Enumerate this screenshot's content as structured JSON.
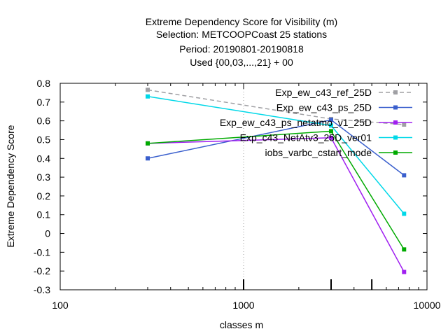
{
  "chart_data": {
    "type": "line",
    "title_lines": [
      "Extreme Dependency Score  for Visibility (m)",
      "Selection: METCOOPCoast     25 stations",
      "Period: 20190801-20190818",
      "Used {00,03,...,21} + 00"
    ],
    "xlabel": "classes m",
    "ylabel": "Extreme Dependency Score",
    "x_scale": "log",
    "xlim": [
      100,
      10000
    ],
    "ylim": [
      -0.3,
      0.8
    ],
    "x_ticks": [
      100,
      1000,
      10000
    ],
    "x_tick_labels": [
      "100",
      "1000",
      "10000"
    ],
    "y_ticks": [
      -0.3,
      -0.2,
      -0.1,
      0,
      0.1,
      0.2,
      0.3,
      0.4,
      0.5,
      0.6,
      0.7,
      0.8
    ],
    "y_tick_labels": [
      "-0.3",
      "-0.2",
      "-0.1",
      "0",
      "0.1",
      "0.2",
      "0.3",
      "0.4",
      "0.5",
      "0.6",
      "0.7",
      "0.8"
    ],
    "grid": "dotted vertical at x=1000",
    "legend_position": "top-right",
    "x": [
      300,
      3000,
      7500
    ],
    "series": [
      {
        "name": "Exp_ew_c43_ref_25D",
        "values": [
          0.765,
          0.61,
          0.58
        ],
        "color": "#a0a0a4",
        "dashed": true
      },
      {
        "name": "Exp_ew_c43_ps_25D",
        "values": [
          0.4,
          0.605,
          0.31
        ],
        "color": "#3a5fcd",
        "dashed": false
      },
      {
        "name": "Exp_ew_c43_ps_netatmo_v1_25D",
        "values": [
          0.48,
          0.51,
          -0.205
        ],
        "color": "#a020f0",
        "dashed": false
      },
      {
        "name": "Exp_c43_NetAtv3_25D_ver01",
        "values": [
          0.73,
          0.575,
          0.105
        ],
        "color": "#00d8e8",
        "dashed": false
      },
      {
        "name": "iobs_varbc_cstart_mode",
        "values": [
          0.48,
          0.545,
          -0.085
        ],
        "color": "#00aa00",
        "dashed": false
      }
    ],
    "bottom_markers": [
      1000,
      3000,
      5000
    ]
  }
}
